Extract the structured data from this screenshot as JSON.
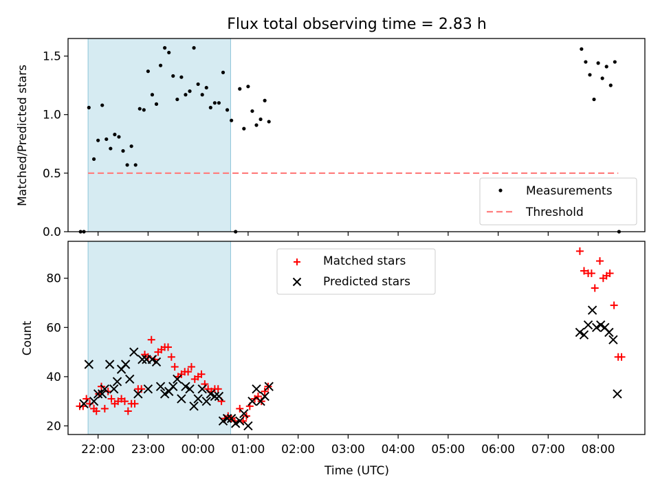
{
  "chart_data": {
    "type": "scatter",
    "title": "Flux total observing time = 2.83 h",
    "xlabel": "Time (UTC)",
    "x_unit": "time of day (UTC), night spanning two dates",
    "xlim": [
      "21:24",
      "08:56"
    ],
    "x_ticks": [
      "22:00",
      "23:00",
      "00:00",
      "01:00",
      "02:00",
      "03:00",
      "04:00",
      "05:00",
      "06:00",
      "07:00",
      "08:00"
    ],
    "shaded_interval": [
      "21:48",
      "00:39"
    ],
    "shaded_color": "#add8e6",
    "panels": [
      {
        "ylabel": "Matched/Predicted stars",
        "ylim": [
          0,
          1.65
        ],
        "y_ticks": [
          "0.0",
          "0.5",
          "1.0",
          "1.5"
        ],
        "legend_position": "lower right",
        "legend": [
          {
            "label": "Measurements",
            "marker": "dot",
            "color": "#000000"
          },
          {
            "label": "Threshold",
            "marker": "dashed-line",
            "color": "#ff7f7f"
          }
        ],
        "series": [
          {
            "name": "Measurements",
            "color": "#000000",
            "points": [
              [
                "21:39",
                0.0
              ],
              [
                "21:43",
                0.0
              ],
              [
                "21:49",
                1.06
              ],
              [
                "21:55",
                0.62
              ],
              [
                "22:00",
                0.78
              ],
              [
                "22:05",
                1.08
              ],
              [
                "22:10",
                0.79
              ],
              [
                "22:15",
                0.71
              ],
              [
                "22:20",
                0.83
              ],
              [
                "22:25",
                0.81
              ],
              [
                "22:30",
                0.69
              ],
              [
                "22:35",
                0.57
              ],
              [
                "22:40",
                0.73
              ],
              [
                "22:45",
                0.57
              ],
              [
                "22:50",
                1.05
              ],
              [
                "22:55",
                1.04
              ],
              [
                "23:00",
                1.37
              ],
              [
                "23:05",
                1.17
              ],
              [
                "23:10",
                1.09
              ],
              [
                "23:15",
                1.42
              ],
              [
                "23:20",
                1.57
              ],
              [
                "23:25",
                1.53
              ],
              [
                "23:30",
                1.33
              ],
              [
                "23:35",
                1.13
              ],
              [
                "23:40",
                1.32
              ],
              [
                "23:45",
                1.17
              ],
              [
                "23:50",
                1.2
              ],
              [
                "23:55",
                1.57
              ],
              [
                "00:00",
                1.26
              ],
              [
                "00:05",
                1.17
              ],
              [
                "00:10",
                1.23
              ],
              [
                "00:15",
                1.06
              ],
              [
                "00:20",
                1.1
              ],
              [
                "00:25",
                1.1
              ],
              [
                "00:30",
                1.36
              ],
              [
                "00:35",
                1.04
              ],
              [
                "00:40",
                0.95
              ],
              [
                "00:45",
                0.0
              ],
              [
                "00:50",
                1.22
              ],
              [
                "00:55",
                0.88
              ],
              [
                "01:00",
                1.24
              ],
              [
                "01:05",
                1.03
              ],
              [
                "01:10",
                0.91
              ],
              [
                "01:15",
                0.96
              ],
              [
                "01:20",
                1.12
              ],
              [
                "01:25",
                0.94
              ],
              [
                "07:40",
                1.56
              ],
              [
                "07:45",
                1.45
              ],
              [
                "07:50",
                1.34
              ],
              [
                "07:55",
                1.13
              ],
              [
                "08:00",
                1.44
              ],
              [
                "08:05",
                1.31
              ],
              [
                "08:10",
                1.41
              ],
              [
                "08:15",
                1.25
              ],
              [
                "08:20",
                1.45
              ],
              [
                "08:25",
                0.0
              ]
            ]
          },
          {
            "name": "Threshold",
            "color": "#ff7f7f",
            "points": [
              [
                "21:48",
                0.5
              ],
              [
                "08:24",
                0.5
              ]
            ]
          }
        ]
      },
      {
        "ylabel": "Count",
        "ylim": [
          16.5,
          95
        ],
        "y_ticks": [
          "20",
          "40",
          "60",
          "80"
        ],
        "legend_position": "upper center",
        "legend": [
          {
            "label": "Matched stars",
            "marker": "plus",
            "color": "#ff0000"
          },
          {
            "label": "Predicted stars",
            "marker": "x",
            "color": "#000000"
          }
        ],
        "series": [
          {
            "name": "Matched stars",
            "color": "#ff0000",
            "points": [
              [
                "21:38",
                28
              ],
              [
                "21:42",
                28
              ],
              [
                "21:46",
                31
              ],
              [
                "21:50",
                29
              ],
              [
                "21:55",
                27
              ],
              [
                "21:58",
                26
              ],
              [
                "22:01",
                33
              ],
              [
                "22:04",
                36
              ],
              [
                "22:08",
                27
              ],
              [
                "22:12",
                34
              ],
              [
                "22:16",
                31
              ],
              [
                "22:20",
                29
              ],
              [
                "22:24",
                30
              ],
              [
                "22:28",
                31
              ],
              [
                "22:32",
                30
              ],
              [
                "22:36",
                26
              ],
              [
                "22:40",
                29
              ],
              [
                "22:44",
                29
              ],
              [
                "22:48",
                35
              ],
              [
                "22:52",
                35
              ],
              [
                "22:56",
                49
              ],
              [
                "23:00",
                48
              ],
              [
                "23:04",
                55
              ],
              [
                "23:08",
                47
              ],
              [
                "23:12",
                50
              ],
              [
                "23:16",
                51
              ],
              [
                "23:20",
                52
              ],
              [
                "23:24",
                52
              ],
              [
                "23:28",
                48
              ],
              [
                "23:32",
                44
              ],
              [
                "23:36",
                40
              ],
              [
                "23:40",
                41
              ],
              [
                "23:44",
                42
              ],
              [
                "23:48",
                42
              ],
              [
                "23:52",
                44
              ],
              [
                "23:56",
                39
              ],
              [
                "00:00",
                40
              ],
              [
                "00:04",
                41
              ],
              [
                "00:08",
                37
              ],
              [
                "00:12",
                35
              ],
              [
                "00:16",
                34
              ],
              [
                "00:20",
                35
              ],
              [
                "00:24",
                35
              ],
              [
                "00:28",
                30
              ],
              [
                "00:32",
                23
              ],
              [
                "00:36",
                24
              ],
              [
                "00:40",
                23
              ],
              [
                "00:44",
                22
              ],
              [
                "00:50",
                27
              ],
              [
                "00:54",
                22
              ],
              [
                "00:58",
                24
              ],
              [
                "01:02",
                28
              ],
              [
                "01:08",
                31
              ],
              [
                "01:12",
                32
              ],
              [
                "01:16",
                30
              ],
              [
                "01:20",
                34
              ],
              [
                "01:24",
                36
              ],
              [
                "07:38",
                91
              ],
              [
                "07:43",
                83
              ],
              [
                "07:48",
                82
              ],
              [
                "07:52",
                82
              ],
              [
                "07:56",
                76
              ],
              [
                "08:02",
                87
              ],
              [
                "08:06",
                80
              ],
              [
                "08:10",
                81
              ],
              [
                "08:14",
                82
              ],
              [
                "08:19",
                69
              ],
              [
                "08:24",
                48
              ],
              [
                "08:28",
                48
              ]
            ]
          },
          {
            "name": "Predicted stars",
            "color": "#000000",
            "points": [
              [
                "21:43",
                29
              ],
              [
                "21:49",
                45
              ],
              [
                "21:55",
                30
              ],
              [
                "22:00",
                33
              ],
              [
                "22:05",
                33
              ],
              [
                "22:08",
                35
              ],
              [
                "22:14",
                45
              ],
              [
                "22:19",
                35
              ],
              [
                "22:23",
                38
              ],
              [
                "22:28",
                43
              ],
              [
                "22:33",
                45
              ],
              [
                "22:38",
                39
              ],
              [
                "22:43",
                50
              ],
              [
                "22:48",
                33
              ],
              [
                "22:53",
                47
              ],
              [
                "22:58",
                47
              ],
              [
                "23:00",
                35
              ],
              [
                "23:05",
                47
              ],
              [
                "23:10",
                46
              ],
              [
                "23:15",
                36
              ],
              [
                "23:20",
                33
              ],
              [
                "23:25",
                34
              ],
              [
                "23:30",
                36
              ],
              [
                "23:35",
                39
              ],
              [
                "23:40",
                31
              ],
              [
                "23:45",
                36
              ],
              [
                "23:50",
                35
              ],
              [
                "23:55",
                28
              ],
              [
                "00:00",
                31
              ],
              [
                "00:05",
                35
              ],
              [
                "00:10",
                30
              ],
              [
                "00:15",
                33
              ],
              [
                "00:20",
                32
              ],
              [
                "00:25",
                32
              ],
              [
                "00:30",
                22
              ],
              [
                "00:35",
                23
              ],
              [
                "00:40",
                23
              ],
              [
                "00:45",
                21
              ],
              [
                "00:50",
                22
              ],
              [
                "00:55",
                25
              ],
              [
                "01:00",
                20
              ],
              [
                "01:05",
                30
              ],
              [
                "01:10",
                35
              ],
              [
                "01:15",
                30
              ],
              [
                "01:20",
                32
              ],
              [
                "01:25",
                36
              ],
              [
                "07:38",
                58
              ],
              [
                "07:43",
                57
              ],
              [
                "07:48",
                61
              ],
              [
                "07:53",
                67
              ],
              [
                "07:58",
                60
              ],
              [
                "08:03",
                61
              ],
              [
                "08:08",
                60
              ],
              [
                "08:13",
                58
              ],
              [
                "08:18",
                55
              ],
              [
                "08:23",
                33
              ]
            ]
          }
        ]
      }
    ]
  }
}
